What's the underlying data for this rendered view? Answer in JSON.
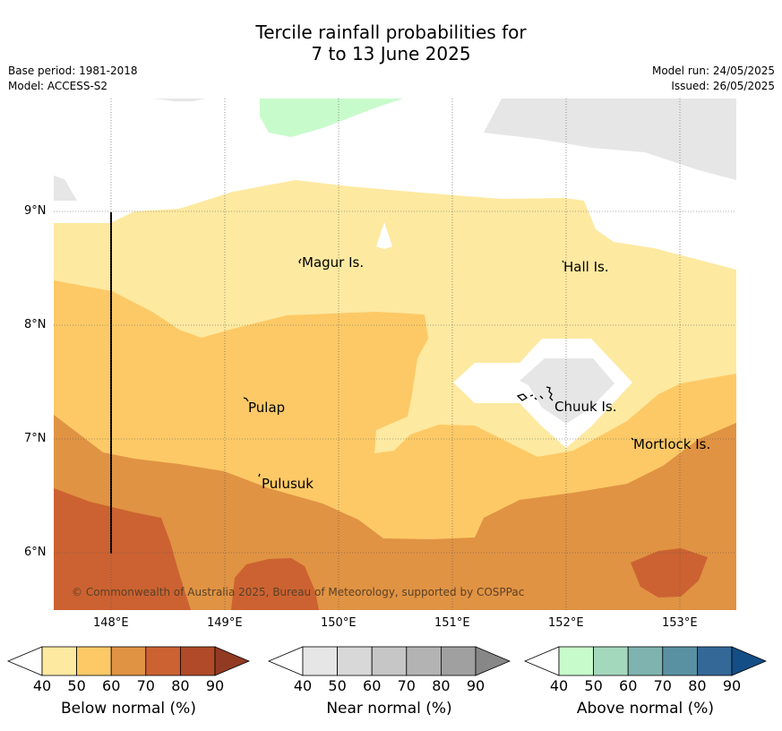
{
  "title_line1": "Tercile rainfall probabilities for",
  "title_line2": "7 to 13 June 2025",
  "base_period": "Base period: 1981-2018",
  "model": "Model: ACCESS-S2",
  "model_run": "Model run: 24/05/2025",
  "issued": "Issued: 26/05/2025",
  "lat_labels": [
    "9°N",
    "8°N",
    "7°N",
    "6°N"
  ],
  "lon_labels": [
    "148°E",
    "149°E",
    "150°E",
    "151°E",
    "152°E",
    "153°E"
  ],
  "places": {
    "magur": "Magur Is.",
    "hall": "Hall Is.",
    "pulap": "Pulap",
    "chuuk": "Chuuk Is.",
    "mortlock": "Mortlock Is.",
    "pulusuk": "Pulusuk"
  },
  "copyright": "© Commonwealth of Australia 2025, Bureau of Meteorology, supported by COSPPac",
  "colorbars": [
    {
      "label": "Below normal (%)",
      "ticks": [
        "40",
        "50",
        "60",
        "70",
        "80",
        "90"
      ],
      "colors": [
        "#fde9a0",
        "#fdc966",
        "#e09343",
        "#cc6231",
        "#b04a28",
        "#933a23"
      ]
    },
    {
      "label": "Near normal (%)",
      "ticks": [
        "40",
        "50",
        "60",
        "70",
        "80",
        "90"
      ],
      "colors": [
        "#e6e6e6",
        "#d8d8d8",
        "#c6c6c6",
        "#b3b3b3",
        "#a0a0a0",
        "#878787"
      ]
    },
    {
      "label": "Above normal (%)",
      "ticks": [
        "40",
        "50",
        "60",
        "70",
        "80",
        "90"
      ],
      "colors": [
        "#c8fbcb",
        "#a4d8bd",
        "#7eb3af",
        "#5a91a2",
        "#346897",
        "#144e86"
      ]
    }
  ],
  "map_colors": {
    "below_40": "#fde9a0",
    "below_50": "#fdc966",
    "below_60": "#e09343",
    "below_70": "#cc6231",
    "near_40": "#e6e6e6",
    "above_40": "#c8fbcb"
  }
}
